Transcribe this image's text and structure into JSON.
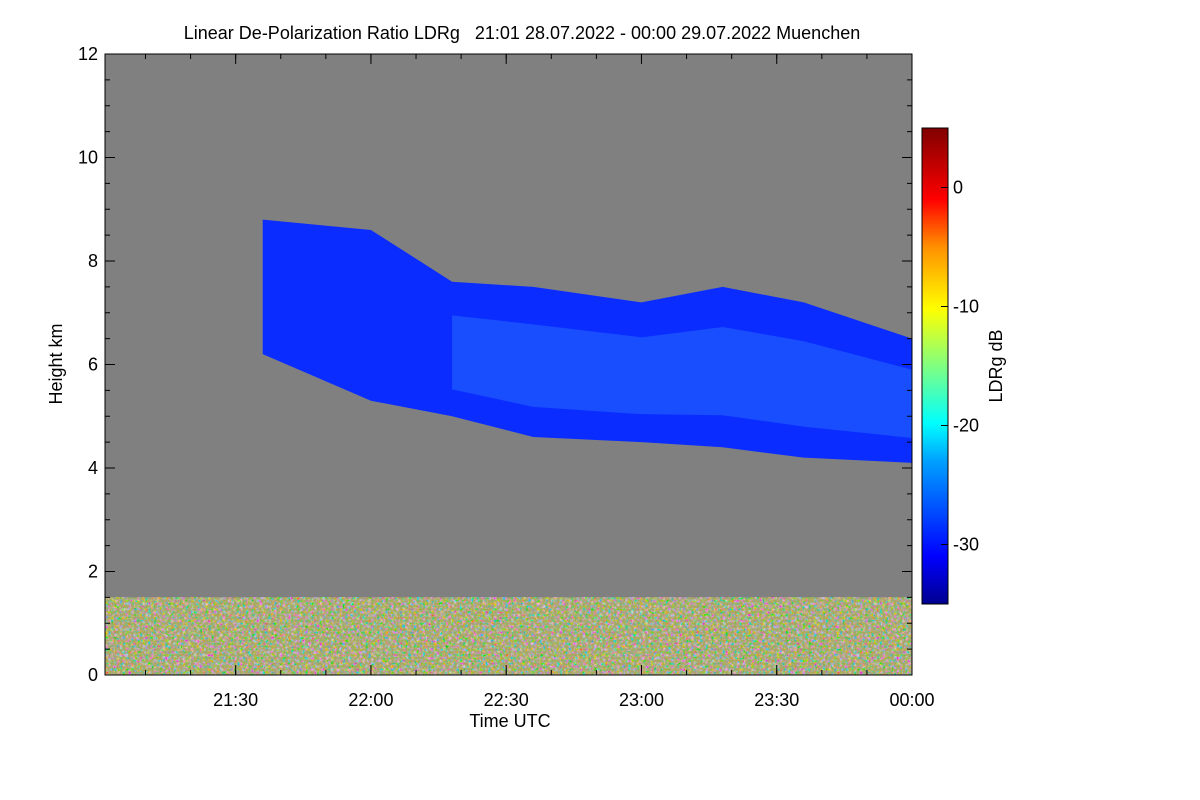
{
  "chart_data": {
    "type": "heatmap",
    "title": "Linear De-Polarization Ratio LDRg   21:01 28.07.2022 - 00:00 29.07.2022 Muenchen",
    "xlabel": "Time UTC",
    "ylabel": "Height km",
    "colorbar_label": "LDRg dB",
    "xlim_hours": [
      21.017,
      24.0
    ],
    "ylim": [
      0,
      12
    ],
    "x_ticks": [
      {
        "value": 21.5,
        "label": "21:30"
      },
      {
        "value": 22.0,
        "label": "22:00"
      },
      {
        "value": 22.5,
        "label": "22:30"
      },
      {
        "value": 23.0,
        "label": "23:00"
      },
      {
        "value": 23.5,
        "label": "23:30"
      },
      {
        "value": 24.0,
        "label": "00:00"
      }
    ],
    "y_ticks": [
      {
        "value": 0,
        "label": "0"
      },
      {
        "value": 2,
        "label": "2"
      },
      {
        "value": 4,
        "label": "4"
      },
      {
        "value": 6,
        "label": "6"
      },
      {
        "value": 8,
        "label": "8"
      },
      {
        "value": 10,
        "label": "10"
      },
      {
        "value": 12,
        "label": "12"
      }
    ],
    "colorbar_range": [
      -35,
      5
    ],
    "colorbar_ticks": [
      {
        "value": 0,
        "label": "0"
      },
      {
        "value": -10,
        "label": "-10"
      },
      {
        "value": -20,
        "label": "-20"
      },
      {
        "value": -30,
        "label": "-30"
      }
    ],
    "background_color": "#808080",
    "colormap": [
      "#00008f",
      "#0000ff",
      "#00ffff",
      "#ffff00",
      "#ff0000",
      "#800000"
    ],
    "cloud_layer": {
      "ldr_db": -30,
      "time_hours": [
        21.6,
        22.0,
        22.3,
        22.6,
        23.0,
        23.3,
        23.6,
        24.0
      ],
      "base_km": [
        6.2,
        5.3,
        5.0,
        4.6,
        4.5,
        4.4,
        4.2,
        4.1
      ],
      "top_km": [
        8.8,
        8.6,
        7.6,
        7.5,
        7.2,
        7.5,
        7.2,
        6.5
      ]
    },
    "noise_layer": {
      "top_km": 1.5,
      "ldr_db_range": [
        -20,
        0
      ]
    }
  }
}
